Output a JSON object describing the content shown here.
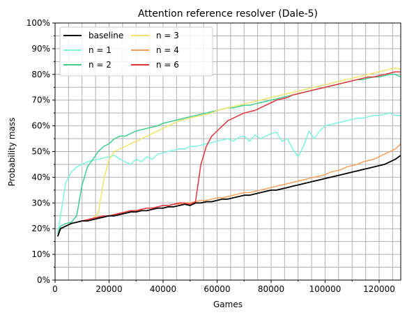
{
  "chart_data": {
    "type": "line",
    "title": "Attention reference resolver (Dale-5)",
    "xlabel": "Games",
    "ylabel": "Probability mass",
    "xlim": [
      0,
      128000
    ],
    "ylim": [
      0,
      100
    ],
    "x_ticks": [
      0,
      20000,
      40000,
      60000,
      80000,
      100000,
      120000
    ],
    "x_tick_labels": [
      "0",
      "20000",
      "40000",
      "60000",
      "80000",
      "100000",
      "120000"
    ],
    "y_ticks": [
      0,
      10,
      20,
      30,
      40,
      50,
      60,
      70,
      80,
      90,
      100
    ],
    "y_tick_labels": [
      "0%",
      "10%",
      "20%",
      "30%",
      "40%",
      "50%",
      "60%",
      "70%",
      "80%",
      "90%",
      "100%"
    ],
    "grid": true,
    "grid_minor": true,
    "legend_placement": "top-left",
    "legend_columns": 2,
    "series": [
      {
        "name": "baseline",
        "color": "#000000",
        "x": [
          1000,
          2000,
          4000,
          6000,
          8000,
          10000,
          12000,
          14000,
          16000,
          18000,
          20000,
          22000,
          24000,
          26000,
          28000,
          30000,
          32000,
          34000,
          36000,
          38000,
          40000,
          42000,
          44000,
          46000,
          48000,
          50000,
          52000,
          54000,
          56000,
          58000,
          60000,
          62000,
          64000,
          66000,
          68000,
          70000,
          72000,
          74000,
          76000,
          78000,
          80000,
          82000,
          84000,
          86000,
          88000,
          90000,
          92000,
          94000,
          96000,
          98000,
          100000,
          102000,
          104000,
          106000,
          108000,
          110000,
          112000,
          114000,
          116000,
          118000,
          120000,
          122000,
          124000,
          126000,
          128000
        ],
        "values": [
          17,
          20,
          21,
          22,
          22.5,
          23,
          23,
          23.5,
          24,
          24.5,
          25,
          25,
          25.5,
          26,
          26.5,
          26.5,
          27,
          27,
          27.5,
          28,
          28,
          28.5,
          28.5,
          29,
          29.5,
          29,
          30,
          30,
          30.5,
          30.5,
          31,
          31.5,
          31.5,
          32,
          32.5,
          33,
          33,
          33.5,
          34,
          34.5,
          35,
          35,
          35.5,
          36,
          36.5,
          37,
          37.5,
          38,
          38.5,
          39,
          39.5,
          40,
          40.5,
          41,
          41.5,
          42,
          42.5,
          43,
          43.5,
          44,
          44.5,
          45,
          46,
          47,
          48.5
        ]
      },
      {
        "name": "n = 1",
        "color": "#7ff5e0",
        "x": [
          1000,
          2000,
          4000,
          6000,
          8000,
          10000,
          12000,
          14000,
          16000,
          18000,
          20000,
          22000,
          24000,
          26000,
          28000,
          30000,
          32000,
          34000,
          36000,
          38000,
          40000,
          42000,
          44000,
          46000,
          48000,
          50000,
          52000,
          54000,
          56000,
          58000,
          60000,
          62000,
          64000,
          66000,
          68000,
          70000,
          72000,
          74000,
          76000,
          78000,
          80000,
          82000,
          84000,
          86000,
          88000,
          90000,
          92000,
          94000,
          96000,
          98000,
          100000,
          102000,
          104000,
          106000,
          108000,
          110000,
          112000,
          114000,
          116000,
          118000,
          120000,
          122000,
          124000,
          126000,
          128000
        ],
        "values": [
          18,
          25,
          38,
          42,
          44,
          45,
          46,
          46.5,
          47,
          47.5,
          48,
          48.5,
          47,
          46,
          45,
          47,
          46,
          48,
          47,
          49,
          49.5,
          50,
          50.5,
          51,
          51,
          52,
          52,
          52.5,
          53,
          53.5,
          54,
          54.5,
          55,
          54,
          55.5,
          56,
          54,
          56.5,
          55,
          56,
          57,
          57.5,
          54,
          55,
          51,
          48,
          52,
          58,
          55,
          58,
          60,
          60.5,
          61,
          61.5,
          62,
          62.5,
          63,
          63,
          63.5,
          64,
          64,
          64.5,
          65,
          64,
          64
        ]
      },
      {
        "name": "n = 2",
        "color": "#3ecf8e",
        "x": [
          1000,
          2000,
          4000,
          6000,
          8000,
          10000,
          12000,
          14000,
          16000,
          18000,
          20000,
          22000,
          24000,
          26000,
          28000,
          30000,
          32000,
          34000,
          36000,
          38000,
          40000,
          42000,
          44000,
          46000,
          48000,
          50000,
          52000,
          54000,
          56000,
          58000,
          60000,
          62000,
          64000,
          66000,
          68000,
          70000,
          72000,
          74000,
          76000,
          78000,
          80000,
          82000,
          84000,
          86000,
          88000,
          90000,
          92000,
          94000,
          96000,
          98000,
          100000,
          102000,
          104000,
          106000,
          108000,
          110000,
          112000,
          114000,
          116000,
          118000,
          120000,
          122000,
          124000,
          126000,
          128000
        ],
        "values": [
          18,
          21,
          22,
          22.5,
          25,
          37,
          44,
          47,
          50,
          52,
          53,
          55,
          56,
          56,
          57,
          58,
          58.5,
          59,
          59.5,
          60,
          61,
          61.5,
          62,
          62.5,
          63,
          63.5,
          64,
          64.5,
          65,
          65.5,
          66,
          66.5,
          67,
          67,
          67.5,
          68,
          68,
          68.5,
          69,
          69.5,
          70,
          70.5,
          71,
          71.5,
          72,
          72.5,
          73,
          73.5,
          74,
          74.5,
          75,
          75.5,
          76,
          76.5,
          77,
          77.5,
          78,
          78,
          78.5,
          79,
          79,
          79.5,
          80,
          80,
          79
        ]
      },
      {
        "name": "n = 3",
        "color": "#f2e36a",
        "x": [
          1000,
          2000,
          4000,
          6000,
          8000,
          10000,
          12000,
          14000,
          16000,
          18000,
          20000,
          22000,
          24000,
          26000,
          28000,
          30000,
          32000,
          34000,
          36000,
          38000,
          40000,
          42000,
          44000,
          46000,
          48000,
          50000,
          52000,
          54000,
          56000,
          58000,
          60000,
          62000,
          64000,
          66000,
          68000,
          70000,
          72000,
          74000,
          76000,
          78000,
          80000,
          82000,
          84000,
          86000,
          88000,
          90000,
          92000,
          94000,
          96000,
          98000,
          100000,
          102000,
          104000,
          106000,
          108000,
          110000,
          112000,
          114000,
          116000,
          118000,
          120000,
          122000,
          124000,
          126000,
          128000
        ],
        "values": [
          17,
          20,
          21,
          22,
          22.5,
          23,
          23.5,
          24,
          26,
          39,
          47,
          50,
          51,
          52,
          53,
          54,
          55,
          56,
          57,
          58,
          59,
          60,
          61,
          62,
          62.5,
          63,
          63.5,
          64,
          64.5,
          65,
          66,
          66.5,
          67,
          67.5,
          68,
          68.5,
          69,
          69.5,
          70,
          70.5,
          71,
          71.5,
          72,
          72.5,
          73,
          73.5,
          74,
          74.5,
          75,
          75.5,
          76,
          76.5,
          77,
          77.5,
          78,
          78.5,
          79,
          79.5,
          80,
          80.5,
          81,
          81.5,
          82,
          82.5,
          82
        ]
      },
      {
        "name": "n = 4",
        "color": "#f5a05a",
        "x": [
          1000,
          2000,
          4000,
          6000,
          8000,
          10000,
          12000,
          14000,
          16000,
          18000,
          20000,
          22000,
          24000,
          26000,
          28000,
          30000,
          32000,
          34000,
          36000,
          38000,
          40000,
          42000,
          44000,
          46000,
          48000,
          50000,
          52000,
          54000,
          56000,
          58000,
          60000,
          62000,
          64000,
          66000,
          68000,
          70000,
          72000,
          74000,
          76000,
          78000,
          80000,
          82000,
          84000,
          86000,
          88000,
          90000,
          92000,
          94000,
          96000,
          98000,
          100000,
          102000,
          104000,
          106000,
          108000,
          110000,
          112000,
          114000,
          116000,
          118000,
          120000,
          122000,
          124000,
          126000,
          128000
        ],
        "values": [
          17,
          20,
          21,
          22,
          22.5,
          23,
          23.5,
          24,
          24.5,
          25,
          25,
          25.5,
          26,
          26.5,
          27,
          27,
          27.5,
          28,
          28,
          28.5,
          29,
          29,
          29.5,
          29.5,
          30,
          30,
          30.5,
          31,
          31,
          31.5,
          32,
          32,
          32.5,
          33,
          33.5,
          34,
          34,
          34.5,
          35,
          35.5,
          36,
          36.5,
          37,
          37.5,
          38,
          38.5,
          39,
          39.5,
          40,
          40.5,
          41,
          42,
          42.5,
          43,
          44,
          44.5,
          45,
          46,
          46.5,
          47,
          48,
          49,
          50,
          51,
          53
        ]
      },
      {
        "name": "n = 6",
        "color": "#e8313c",
        "x": [
          1000,
          2000,
          4000,
          6000,
          8000,
          10000,
          12000,
          14000,
          16000,
          18000,
          20000,
          22000,
          24000,
          26000,
          28000,
          30000,
          32000,
          34000,
          36000,
          38000,
          40000,
          42000,
          44000,
          46000,
          48000,
          50000,
          52000,
          54000,
          56000,
          58000,
          60000,
          62000,
          64000,
          66000,
          68000,
          70000,
          72000,
          74000,
          76000,
          78000,
          80000,
          82000,
          84000,
          86000,
          88000,
          90000,
          92000,
          94000,
          96000,
          98000,
          100000,
          102000,
          104000,
          106000,
          108000,
          110000,
          112000,
          114000,
          116000,
          118000,
          120000,
          122000,
          124000,
          126000,
          128000
        ],
        "values": [
          17,
          20,
          21,
          22,
          22.5,
          23,
          23.5,
          24,
          24.5,
          25,
          25,
          25.5,
          26,
          26.5,
          27,
          27,
          27.5,
          28,
          28,
          28.5,
          29,
          29,
          29.5,
          30,
          30,
          29.5,
          30.5,
          45,
          52,
          56,
          58,
          60,
          62,
          63,
          64,
          65,
          65.5,
          66,
          67,
          68,
          69,
          70,
          70.5,
          71,
          72,
          72.5,
          73,
          73.5,
          74,
          74.5,
          75,
          75.5,
          76,
          76.5,
          77,
          77.5,
          78,
          78.5,
          79,
          79,
          79.5,
          80,
          80.5,
          81,
          81
        ]
      }
    ]
  }
}
